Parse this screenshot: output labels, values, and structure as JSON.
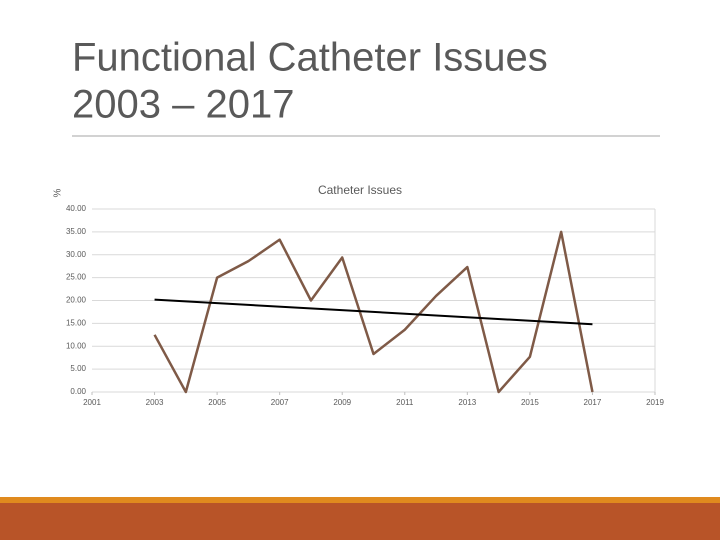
{
  "chart_data": {
    "type": "line",
    "slide_title": "Functional Catheter Issues",
    "slide_subtitle": "2003 – 2017",
    "title": "Catheter Issues",
    "y_label": "%",
    "x": [
      2003,
      2004,
      2005,
      2006,
      2007,
      2008,
      2009,
      2010,
      2011,
      2012,
      2013,
      2014,
      2015,
      2016,
      2017
    ],
    "values": [
      12.5,
      0,
      25,
      28.6,
      33.3,
      20,
      29.4,
      8.3,
      13.6,
      21,
      27.3,
      0,
      7.7,
      35,
      0
    ],
    "color": "#7f5a47",
    "trend": {
      "x": [
        2003,
        2017
      ],
      "values": [
        20.2,
        14.8
      ],
      "color": "#000000"
    },
    "xlim": [
      2001,
      2019
    ],
    "xticks": [
      2001,
      2003,
      2005,
      2007,
      2009,
      2011,
      2013,
      2015,
      2017,
      2019
    ],
    "ylim": [
      0,
      40
    ],
    "yticks": [
      {
        "value": 0,
        "label": "0.00"
      },
      {
        "value": 5,
        "label": "5.00"
      },
      {
        "value": 10,
        "label": "10.00"
      },
      {
        "value": 15,
        "label": "15.00"
      },
      {
        "value": 20,
        "label": "20.00"
      },
      {
        "value": 25,
        "label": "25.00"
      },
      {
        "value": 30,
        "label": "30.00"
      },
      {
        "value": 35,
        "label": "35.00"
      },
      {
        "value": 40,
        "label": "40.00"
      }
    ],
    "grid": true
  }
}
